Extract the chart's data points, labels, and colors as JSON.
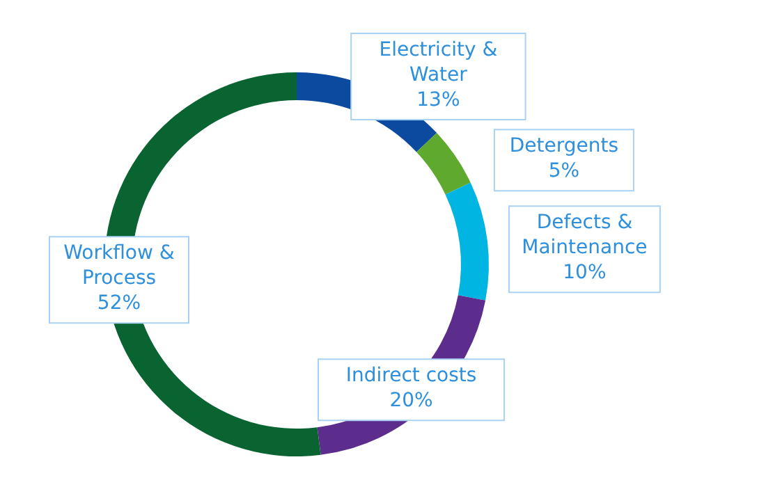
{
  "chart_data": {
    "type": "donut",
    "categories": [
      "Electricity & Water",
      "Detergents",
      "Defects & Maintenance",
      "Indirect costs",
      "Workflow & Process"
    ],
    "values": [
      13,
      5,
      10,
      20,
      52
    ],
    "value_labels": [
      "13%",
      "5%",
      "10%",
      "20%",
      "52%"
    ],
    "colors": [
      "#0b4a9e",
      "#5ea92e",
      "#00b5e2",
      "#5c2d8c",
      "#0a6432"
    ]
  }
}
